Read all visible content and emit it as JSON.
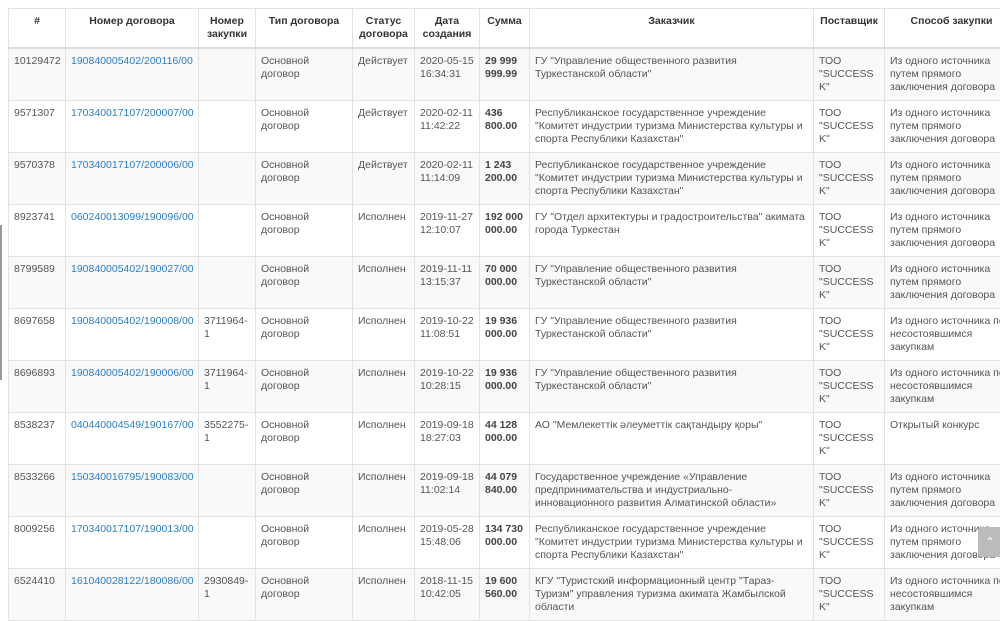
{
  "columns": [
    "#",
    "Номер договора",
    "Номер закупки",
    "Тип договора",
    "Статус договора",
    "Дата создания",
    "Сумма",
    "Заказчик",
    "Поставщик",
    "Способ закупки"
  ],
  "rows": [
    {
      "id": "10129472",
      "contract": "190840005402/200116/00",
      "purchase": "",
      "type": "Основной договор",
      "status": "Действует",
      "date": "2020-05-15 16:34:31",
      "sum": "29 999 999.99",
      "customer": "ГУ \"Управление общественного развития Туркестанской области\"",
      "supplier": "ТОО \"SUCCESS K\"",
      "method": "Из одного источника путем прямого заключения договора"
    },
    {
      "id": "9571307",
      "contract": "170340017107/200007/00",
      "purchase": "",
      "type": "Основной договор",
      "status": "Действует",
      "date": "2020-02-11 11:42:22",
      "sum": "436 800.00",
      "customer": "Республиканское государственное учреждение \"Комитет индустрии туризма Министерства культуры и спорта Республики Казахстан\"",
      "supplier": "ТОО \"SUCCESS K\"",
      "method": "Из одного источника путем прямого заключения договора"
    },
    {
      "id": "9570378",
      "contract": "170340017107/200006/00",
      "purchase": "",
      "type": "Основной договор",
      "status": "Действует",
      "date": "2020-02-11 11:14:09",
      "sum": "1 243 200.00",
      "customer": "Республиканское государственное учреждение \"Комитет индустрии туризма Министерства культуры и спорта Республики Казахстан\"",
      "supplier": "ТОО \"SUCCESS K\"",
      "method": "Из одного источника путем прямого заключения договора"
    },
    {
      "id": "8923741",
      "contract": "060240013099/190096/00",
      "purchase": "",
      "type": "Основной договор",
      "status": "Исполнен",
      "date": "2019-11-27 12:10:07",
      "sum": "192 000 000.00",
      "customer": "ГУ \"Отдел архитектуры и градостроительства\" акимата города Туркестан",
      "supplier": "ТОО \"SUCCESS K\"",
      "method": "Из одного источника путем прямого заключения договора"
    },
    {
      "id": "8799589",
      "contract": "190840005402/190027/00",
      "purchase": "",
      "type": "Основной договор",
      "status": "Исполнен",
      "date": "2019-11-11 13:15:37",
      "sum": "70 000 000.00",
      "customer": "ГУ \"Управление общественного развития Туркестанской области\"",
      "supplier": "ТОО \"SUCCESS K\"",
      "method": "Из одного источника путем прямого заключения договора"
    },
    {
      "id": "8697658",
      "contract": "190840005402/190008/00",
      "purchase": "3711964-1",
      "type": "Основной договор",
      "status": "Исполнен",
      "date": "2019-10-22 11:08:51",
      "sum": "19 936 000.00",
      "customer": "ГУ \"Управление общественного развития Туркестанской области\"",
      "supplier": "ТОО \"SUCCESS K\"",
      "method": "Из одного источника по несостоявшимся закупкам"
    },
    {
      "id": "8696893",
      "contract": "190840005402/190006/00",
      "purchase": "3711964-1",
      "type": "Основной договор",
      "status": "Исполнен",
      "date": "2019-10-22 10:28:15",
      "sum": "19 936 000.00",
      "customer": "ГУ \"Управление общественного развития Туркестанской области\"",
      "supplier": "ТОО \"SUCCESS K\"",
      "method": "Из одного источника по несостоявшимся закупкам"
    },
    {
      "id": "8538237",
      "contract": "040440004549/190167/00",
      "purchase": "3552275-1",
      "type": "Основной договор",
      "status": "Исполнен",
      "date": "2019-09-18 18:27:03",
      "sum": "44 128 000.00",
      "customer": "АО \"Мемлекеттік әлеуметтік сақтандыру қоры\"",
      "supplier": "ТОО \"SUCCESS K\"",
      "method": "Открытый конкурс"
    },
    {
      "id": "8533266",
      "contract": "150340016795/190083/00",
      "purchase": "",
      "type": "Основной договор",
      "status": "Исполнен",
      "date": "2019-09-18 11:02:14",
      "sum": "44 079 840.00",
      "customer": "Государственное учреждение «Управление предпринимательства и индустриально-инновационного развития Алматинской области»",
      "supplier": "ТОО \"SUCCESS K\"",
      "method": "Из одного источника путем прямого заключения договора"
    },
    {
      "id": "8009256",
      "contract": "170340017107/190013/00",
      "purchase": "",
      "type": "Основной договор",
      "status": "Исполнен",
      "date": "2019-05-28 15:48:06",
      "sum": "134 730 000.00",
      "customer": "Республиканское государственное учреждение \"Комитет индустрии туризма Министерства культуры и спорта Республики Казахстан\"",
      "supplier": "ТОО \"SUCCESS K\"",
      "method": "Из одного источника путем прямого заключения договора"
    },
    {
      "id": "6524410",
      "contract": "161040028122/180086/00",
      "purchase": "2930849-1",
      "type": "Основной договор",
      "status": "Исполнен",
      "date": "2018-11-15 10:42:05",
      "sum": "19 600 560.00",
      "customer": "КГУ \"Туристский информационный центр \"Тараз-Туризм\" управления туризма акимата Жамбылской области",
      "supplier": "ТОО \"SUCCESS K\"",
      "method": "Из одного источника по несостоявшимся закупкам"
    }
  ],
  "scroll_top_icon": "chevron-up-icon"
}
